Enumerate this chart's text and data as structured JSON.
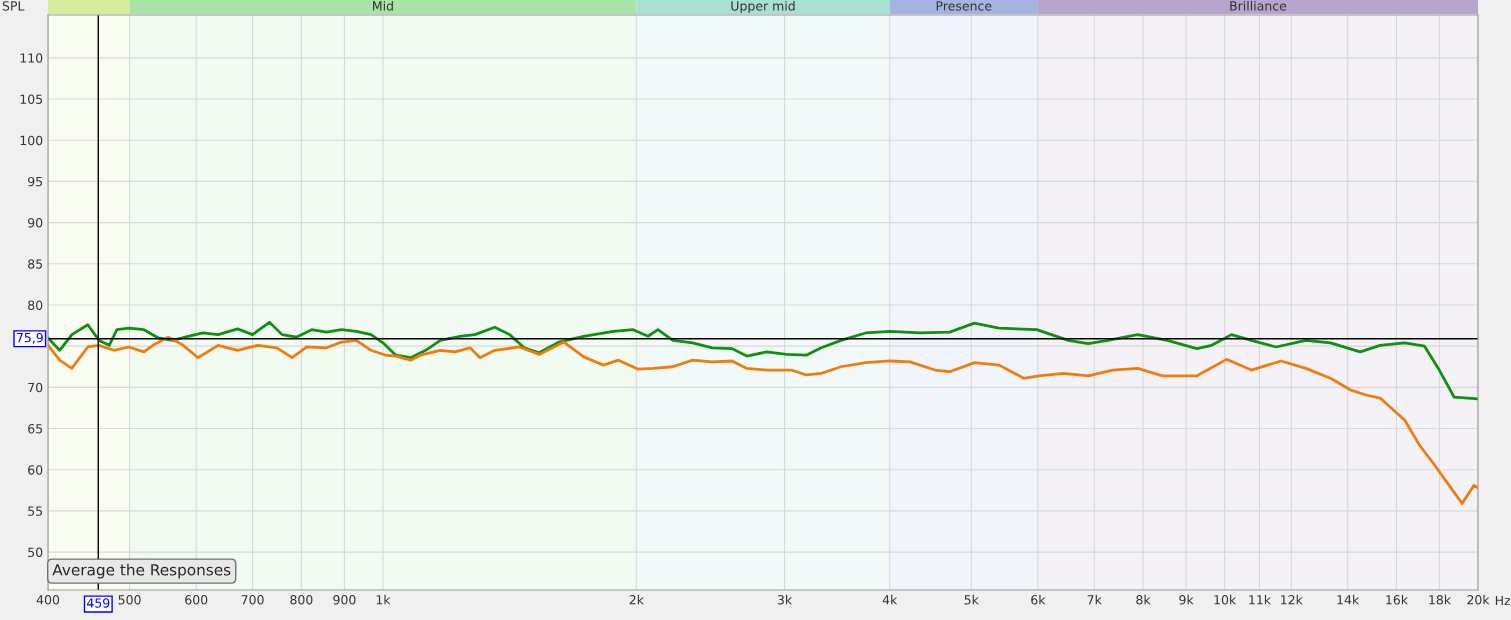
{
  "chart_data": {
    "type": "line",
    "ylabel": "SPL",
    "xlabel": "Hz",
    "log": "x",
    "grid": true,
    "xlim": [
      400,
      20000
    ],
    "ylim": [
      45.4,
      115.2
    ],
    "xticks": [
      400,
      {
        "value": 459,
        "label": null
      },
      500,
      600,
      700,
      800,
      900,
      {
        "value": 1000,
        "label": "1k"
      },
      {
        "value": 2000,
        "label": "2k"
      },
      {
        "value": 3000,
        "label": "3k"
      },
      {
        "value": 4000,
        "label": "4k"
      },
      {
        "value": 5000,
        "label": "5k"
      },
      {
        "value": 6000,
        "label": "6k"
      },
      {
        "value": 7000,
        "label": "7k"
      },
      {
        "value": 8000,
        "label": "8k"
      },
      {
        "value": 9000,
        "label": "9k"
      },
      {
        "value": 10000,
        "label": "10k"
      },
      {
        "value": 11000,
        "label": "11k"
      },
      {
        "value": 12000,
        "label": "12k"
      },
      {
        "value": 14000,
        "label": "14k"
      },
      {
        "value": 16000,
        "label": "16k"
      },
      {
        "value": 18000,
        "label": "18k"
      },
      {
        "value": 20000,
        "label": "20k"
      }
    ],
    "yticks": [
      50,
      55,
      60,
      65,
      70,
      {
        "value": 75,
        "label": null
      },
      80,
      85,
      90,
      95,
      100,
      105,
      110
    ],
    "series": [
      {
        "color": "#109010",
        "x": [
          400,
          413,
          427,
          446,
          460,
          473,
          483,
          499,
          520,
          541,
          563,
          587,
          611,
          637,
          672,
          700,
          733,
          759,
          790,
          823,
          857,
          893,
          930,
          968,
          1000,
          1036,
          1079,
          1124,
          1170,
          1235,
          1286,
          1358,
          1414,
          1472,
          1533,
          1619,
          1732,
          1878,
          1983,
          2065,
          2122,
          2210,
          2333,
          2462,
          2599,
          2706,
          2857,
          3016,
          3184,
          3317,
          3501,
          3745,
          4007,
          4346,
          4714,
          5043,
          5396,
          5980,
          6521,
          6884,
          7266,
          7882,
          8548,
          9270,
          9654,
          10190,
          10757,
          11510,
          12490,
          13360,
          14490,
          15300,
          16370,
          17280,
          17990,
          18740,
          20000
        ],
        "values": [
          76.0,
          74.5,
          76.4,
          77.6,
          75.7,
          75.1,
          77.0,
          77.2,
          77.0,
          76.0,
          75.7,
          76.2,
          76.6,
          76.4,
          77.1,
          76.4,
          77.9,
          76.4,
          76.1,
          77.0,
          76.7,
          77.0,
          76.8,
          76.4,
          75.4,
          73.9,
          73.6,
          74.5,
          75.7,
          76.2,
          76.4,
          77.3,
          76.4,
          74.8,
          74.2,
          75.5,
          76.2,
          76.8,
          77.0,
          76.2,
          77.0,
          75.7,
          75.4,
          74.8,
          74.7,
          73.8,
          74.3,
          74.0,
          73.9,
          74.8,
          75.7,
          76.6,
          76.8,
          76.6,
          76.7,
          77.8,
          77.2,
          77.0,
          75.7,
          75.3,
          75.7,
          76.4,
          75.7,
          74.7,
          75.1,
          76.4,
          75.7,
          74.9,
          75.7,
          75.4,
          74.3,
          75.1,
          75.4,
          75.0,
          72.1,
          68.8,
          68.6
        ]
      },
      {
        "color": "#f07c10",
        "x": [
          400,
          413,
          427,
          446,
          460,
          479,
          499,
          520,
          533,
          556,
          579,
          603,
          637,
          672,
          710,
          748,
          780,
          812,
          857,
          893,
          930,
          968,
          1008,
          1036,
          1079,
          1108,
          1170,
          1218,
          1269,
          1304,
          1358,
          1453,
          1533,
          1641,
          1732,
          1828,
          1905,
          2010,
          2094,
          2210,
          2333,
          2462,
          2599,
          2706,
          2857,
          3057,
          3184,
          3317,
          3501,
          3745,
          4007,
          4230,
          4526,
          4714,
          5043,
          5396,
          5773,
          6013,
          6434,
          6884,
          7366,
          7882,
          8433,
          9270,
          10055,
          10757,
          11670,
          12490,
          13360,
          14100,
          14690,
          15300,
          16370,
          17040,
          17750,
          18480,
          19150,
          19780,
          20000
        ],
        "values": [
          75.1,
          73.3,
          72.3,
          74.9,
          75.1,
          74.5,
          74.9,
          74.3,
          75.1,
          76.1,
          75.1,
          73.6,
          75.1,
          74.5,
          75.1,
          74.8,
          73.6,
          74.9,
          74.8,
          75.5,
          75.7,
          74.5,
          73.9,
          73.8,
          73.3,
          73.9,
          74.5,
          74.3,
          74.8,
          73.6,
          74.5,
          74.9,
          74.0,
          75.5,
          73.7,
          72.7,
          73.3,
          72.2,
          72.3,
          72.5,
          73.3,
          73.1,
          73.2,
          72.3,
          72.1,
          72.1,
          71.5,
          71.7,
          72.5,
          73.0,
          73.2,
          73.1,
          72.1,
          71.9,
          73.0,
          72.7,
          71.1,
          71.4,
          71.7,
          71.4,
          72.1,
          72.3,
          71.4,
          71.4,
          73.4,
          72.1,
          73.2,
          72.3,
          71.1,
          69.7,
          69.1,
          68.7,
          66.0,
          63.0,
          60.6,
          58.1,
          55.9,
          58.1,
          57.8
        ]
      }
    ],
    "ref_lines": [
      {
        "axis": "x",
        "value": 459,
        "label": "459",
        "color": "#000000"
      },
      {
        "axis": "y",
        "value": 75.9,
        "label": "75,9",
        "color": "#000000"
      }
    ],
    "bands": [
      {
        "axis": "x",
        "from": 400,
        "to": 500,
        "color": "#d4ec9c"
      },
      {
        "axis": "x",
        "from": 500,
        "to": 2000,
        "label": "Mid",
        "color": "#a8e4a8"
      },
      {
        "axis": "x",
        "from": 2000,
        "to": 4000,
        "label": "Upper mid",
        "color": "#a8e0d4"
      },
      {
        "axis": "x",
        "from": 4000,
        "to": 6000,
        "label": "Presence",
        "color": "#a4b4e0"
      },
      {
        "axis": "x",
        "from": 6000,
        "to": 20000,
        "label": "Brilliance",
        "color": "#b8a4cc"
      }
    ],
    "annotations": [
      "Average the Responses"
    ]
  }
}
